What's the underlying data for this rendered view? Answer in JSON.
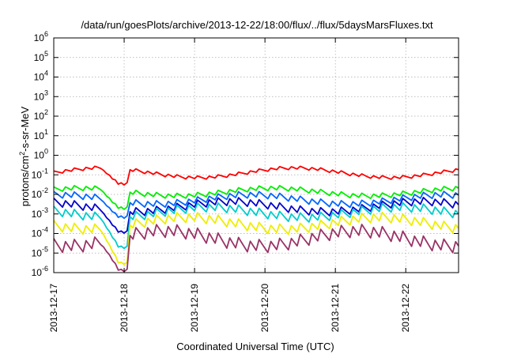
{
  "chart_data": {
    "type": "line",
    "title": "/data/run/goesPlots/archive/2013-12-22/18:00/flux/../flux/5daysMarsFluxes.txt",
    "xlabel": "Coordinated Universal Time (UTC)",
    "ylabel": {
      "base": "protons/cm",
      "sup": "2",
      "rest": "-s-sr-MeV"
    },
    "y_scale": "log",
    "ylim": [
      1e-06,
      1000000.0
    ],
    "y_ticks": [
      {
        "value": 1e-06,
        "base": "10",
        "exp": "-6"
      },
      {
        "value": 1e-05,
        "base": "10",
        "exp": "-5"
      },
      {
        "value": 0.0001,
        "base": "10",
        "exp": "-4"
      },
      {
        "value": 0.001,
        "base": "10",
        "exp": "-3"
      },
      {
        "value": 0.01,
        "base": "10",
        "exp": "-2"
      },
      {
        "value": 0.1,
        "base": "10",
        "exp": "-1"
      },
      {
        "value": 1.0,
        "base": "10",
        "exp": "0"
      },
      {
        "value": 10.0,
        "base": "10",
        "exp": "1"
      },
      {
        "value": 100.0,
        "base": "10",
        "exp": "2"
      },
      {
        "value": 1000.0,
        "base": "10",
        "exp": "3"
      },
      {
        "value": 10000.0,
        "base": "10",
        "exp": "4"
      },
      {
        "value": 100000.0,
        "base": "10",
        "exp": "5"
      },
      {
        "value": 1000000.0,
        "base": "10",
        "exp": "6"
      }
    ],
    "xlim": [
      "2013-12-17T00:00",
      "2013-12-22T18:00"
    ],
    "x_ticks": [
      "2013-12-17",
      "2013-12-18",
      "2013-12-19",
      "2013-12-20",
      "2013-12-21",
      "2013-12-22"
    ],
    "grid": true,
    "series_style": {
      "samples_per_hour": 1,
      "sawtooth_period_hours": 3.5,
      "dip_start": "2013-12-17T16:00",
      "dip_end": "2013-12-18T02:00"
    },
    "series": [
      {
        "color": "#ff0000",
        "level_low": 0.07,
        "level_high": 0.22,
        "dip_low": 0.035,
        "sawtooth_ratio": 1.6
      },
      {
        "color": "#00ee00",
        "level_low": 0.008,
        "level_high": 0.02,
        "dip_low": 0.002,
        "sawtooth_ratio": 2.0
      },
      {
        "color": "#0066ff",
        "level_low": 0.003,
        "level_high": 0.009,
        "dip_low": 0.0007,
        "sawtooth_ratio": 2.5
      },
      {
        "color": "#0000cc",
        "level_low": 0.0012,
        "level_high": 0.004,
        "dip_low": 0.00012,
        "sawtooth_ratio": 3.0
      },
      {
        "color": "#00cccc",
        "level_low": 0.0006,
        "level_high": 0.002,
        "dip_low": 2e-05,
        "sawtooth_ratio": 3.5
      },
      {
        "color": "#eeee00",
        "level_low": 0.00015,
        "level_high": 0.0006,
        "dip_low": 3e-06,
        "sawtooth_ratio": 4.0
      },
      {
        "color": "#993366",
        "level_low": 2e-05,
        "level_high": 0.00012,
        "dip_low": 1.3e-06,
        "sawtooth_ratio": 6.0
      }
    ]
  }
}
